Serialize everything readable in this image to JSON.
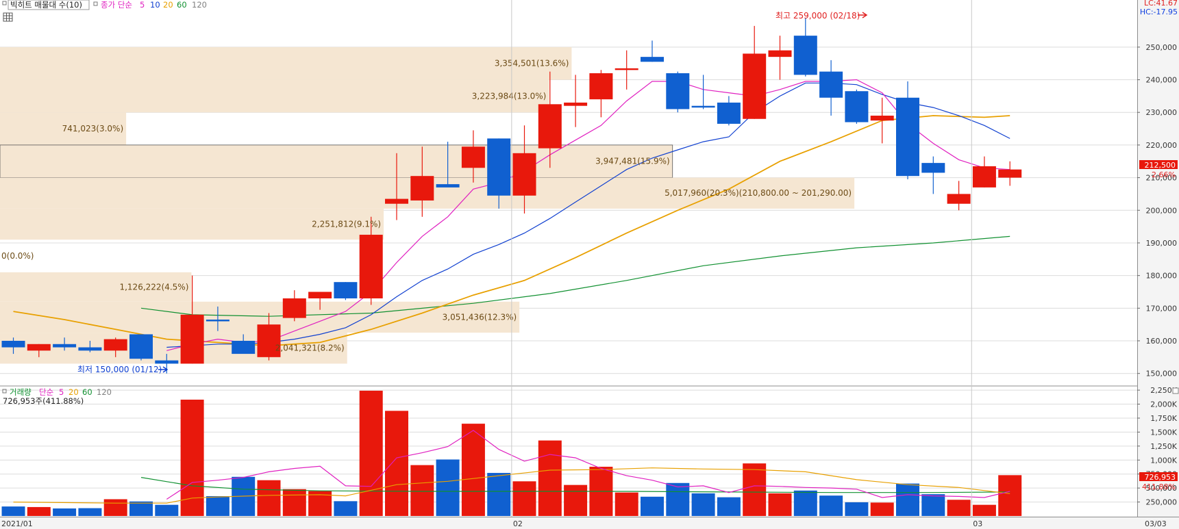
{
  "legend_top": {
    "title": "빅히트 매물대 수(10)",
    "ma_label": "종가 단순",
    "ma_periods": [
      "5",
      "10",
      "20",
      "60",
      "120"
    ],
    "ma_colors": [
      "#e020c0",
      "#1040d0",
      "#e8a000",
      "#109030",
      "#808080"
    ]
  },
  "legend_bottom": {
    "title": "거래량",
    "ma_label": "단순",
    "ma_periods": [
      "5",
      "20",
      "60",
      "120"
    ],
    "ma_colors": [
      "#e020c0",
      "#e8a000",
      "#109030",
      "#808080"
    ],
    "current": "726,953주(411.88%)"
  },
  "corner_labels": {
    "lc": "LC:41.67",
    "hc": "HC:-17.95"
  },
  "colors": {
    "up": "#e8180c",
    "down": "#1060d0",
    "zone": "#f5e6d2",
    "grid": "#dcdcdc"
  },
  "chart_data": [
    {
      "type": "candlestick",
      "x_axis": [
        "2021/01",
        "02",
        "03"
      ],
      "y_ticks": [
        "250,000",
        "240,000",
        "230,000",
        "220,000",
        "210,000",
        "200,000",
        "190,000",
        "180,000",
        "170,000",
        "160,000",
        "150,000"
      ],
      "ylim": [
        147000,
        261500
      ],
      "candles": [
        {
          "o": 160000,
          "h": 161000,
          "l": 156000,
          "c": 158000
        },
        {
          "o": 157000,
          "h": 159000,
          "l": 155000,
          "c": 159000
        },
        {
          "o": 159000,
          "h": 161000,
          "l": 157000,
          "c": 158000
        },
        {
          "o": 158000,
          "h": 160000,
          "l": 156500,
          "c": 157000
        },
        {
          "o": 157000,
          "h": 161000,
          "l": 155000,
          "c": 160500
        },
        {
          "o": 162000,
          "h": 162000,
          "l": 154000,
          "c": 154500
        },
        {
          "o": 154000,
          "h": 156000,
          "l": 150000,
          "c": 153000
        },
        {
          "o": 153000,
          "h": 180000,
          "l": 153000,
          "c": 168000
        },
        {
          "o": 166500,
          "h": 170500,
          "l": 163000,
          "c": 166000
        },
        {
          "o": 160000,
          "h": 162000,
          "l": 157000,
          "c": 156000
        },
        {
          "o": 155000,
          "h": 168500,
          "l": 154000,
          "c": 165000
        },
        {
          "o": 167000,
          "h": 175500,
          "l": 166000,
          "c": 173000
        },
        {
          "o": 173000,
          "h": 175000,
          "l": 169500,
          "c": 175000
        },
        {
          "o": 178000,
          "h": 178000,
          "l": 172500,
          "c": 173000
        },
        {
          "o": 173000,
          "h": 198000,
          "l": 171000,
          "c": 192500
        },
        {
          "o": 202000,
          "h": 217500,
          "l": 197000,
          "c": 203500
        },
        {
          "o": 203000,
          "h": 219500,
          "l": 198000,
          "c": 210500
        },
        {
          "o": 208000,
          "h": 221000,
          "l": 207500,
          "c": 207000
        },
        {
          "o": 213000,
          "h": 224500,
          "l": 208500,
          "c": 219500
        },
        {
          "o": 222000,
          "h": 222000,
          "l": 200500,
          "c": 204500
        },
        {
          "o": 204500,
          "h": 226000,
          "l": 199000,
          "c": 217500
        },
        {
          "o": 219000,
          "h": 242500,
          "l": 213000,
          "c": 232500
        },
        {
          "o": 232000,
          "h": 241500,
          "l": 225500,
          "c": 233000
        },
        {
          "o": 234000,
          "h": 243000,
          "l": 228500,
          "c": 242000
        },
        {
          "o": 243000,
          "h": 249000,
          "l": 237000,
          "c": 243500
        },
        {
          "o": 247000,
          "h": 252000,
          "l": 245500,
          "c": 245500
        },
        {
          "o": 242000,
          "h": 242500,
          "l": 230000,
          "c": 231000
        },
        {
          "o": 232000,
          "h": 241500,
          "l": 231000,
          "c": 231500
        },
        {
          "o": 233000,
          "h": 235000,
          "l": 226000,
          "c": 226500
        },
        {
          "o": 228000,
          "h": 256500,
          "l": 228000,
          "c": 248000
        },
        {
          "o": 247000,
          "h": 253500,
          "l": 240000,
          "c": 249000
        },
        {
          "o": 253500,
          "h": 259000,
          "l": 241000,
          "c": 241500
        },
        {
          "o": 242500,
          "h": 246000,
          "l": 229000,
          "c": 234500
        },
        {
          "o": 236500,
          "h": 237000,
          "l": 226500,
          "c": 227000
        },
        {
          "o": 227500,
          "h": 234500,
          "l": 220500,
          "c": 229000
        },
        {
          "o": 234500,
          "h": 239500,
          "l": 209500,
          "c": 210500
        },
        {
          "o": 214500,
          "h": 216500,
          "l": 205000,
          "c": 211500
        },
        {
          "o": 202000,
          "h": 209000,
          "l": 200000,
          "c": 205000
        },
        {
          "o": 207000,
          "h": 216500,
          "l": 207000,
          "c": 213500
        },
        {
          "o": 210000,
          "h": 215000,
          "l": 207500,
          "c": 212500
        }
      ],
      "ma5": [
        {
          "i": 6,
          "v": 157000
        },
        {
          "i": 7,
          "v": 159000
        },
        {
          "i": 8,
          "v": 160500
        },
        {
          "i": 9,
          "v": 159500
        },
        {
          "i": 10,
          "v": 160000
        },
        {
          "i": 11,
          "v": 163000
        },
        {
          "i": 12,
          "v": 166000
        },
        {
          "i": 13,
          "v": 169000
        },
        {
          "i": 14,
          "v": 175000
        },
        {
          "i": 15,
          "v": 184000
        },
        {
          "i": 16,
          "v": 192000
        },
        {
          "i": 17,
          "v": 198000
        },
        {
          "i": 18,
          "v": 206500
        },
        {
          "i": 19,
          "v": 208500
        },
        {
          "i": 20,
          "v": 212000
        },
        {
          "i": 21,
          "v": 217000
        },
        {
          "i": 22,
          "v": 221500
        },
        {
          "i": 23,
          "v": 226000
        },
        {
          "i": 24,
          "v": 233500
        },
        {
          "i": 25,
          "v": 239500
        },
        {
          "i": 26,
          "v": 239500
        },
        {
          "i": 27,
          "v": 237000
        },
        {
          "i": 28,
          "v": 236000
        },
        {
          "i": 29,
          "v": 235000
        },
        {
          "i": 30,
          "v": 237000
        },
        {
          "i": 31,
          "v": 239500
        },
        {
          "i": 32,
          "v": 239500
        },
        {
          "i": 33,
          "v": 240000
        },
        {
          "i": 34,
          "v": 236000
        },
        {
          "i": 35,
          "v": 226500
        },
        {
          "i": 36,
          "v": 220500
        },
        {
          "i": 37,
          "v": 215500
        },
        {
          "i": 38,
          "v": 213000
        },
        {
          "i": 39,
          "v": 212500
        }
      ],
      "ma10": [
        {
          "i": 6,
          "v": 158000
        },
        {
          "i": 7,
          "v": 158500
        },
        {
          "i": 8,
          "v": 159000
        },
        {
          "i": 9,
          "v": 159000
        },
        {
          "i": 10,
          "v": 159500
        },
        {
          "i": 11,
          "v": 160500
        },
        {
          "i": 12,
          "v": 162000
        },
        {
          "i": 13,
          "v": 164000
        },
        {
          "i": 14,
          "v": 168000
        },
        {
          "i": 15,
          "v": 173500
        },
        {
          "i": 16,
          "v": 178500
        },
        {
          "i": 17,
          "v": 182000
        },
        {
          "i": 18,
          "v": 186500
        },
        {
          "i": 19,
          "v": 189500
        },
        {
          "i": 20,
          "v": 193000
        },
        {
          "i": 21,
          "v": 197500
        },
        {
          "i": 22,
          "v": 202500
        },
        {
          "i": 23,
          "v": 207500
        },
        {
          "i": 24,
          "v": 212500
        },
        {
          "i": 25,
          "v": 216000
        },
        {
          "i": 26,
          "v": 218500
        },
        {
          "i": 27,
          "v": 221000
        },
        {
          "i": 28,
          "v": 222500
        },
        {
          "i": 29,
          "v": 230000
        },
        {
          "i": 30,
          "v": 235000
        },
        {
          "i": 31,
          "v": 239000
        },
        {
          "i": 32,
          "v": 239000
        },
        {
          "i": 33,
          "v": 238500
        },
        {
          "i": 34,
          "v": 235500
        },
        {
          "i": 35,
          "v": 233000
        },
        {
          "i": 36,
          "v": 231500
        },
        {
          "i": 37,
          "v": 229000
        },
        {
          "i": 38,
          "v": 226000
        },
        {
          "i": 39,
          "v": 222000
        }
      ],
      "ma20": [
        {
          "i": 0,
          "v": 169000
        },
        {
          "i": 2,
          "v": 166500
        },
        {
          "i": 4,
          "v": 163500
        },
        {
          "i": 6,
          "v": 160500
        },
        {
          "i": 8,
          "v": 159500
        },
        {
          "i": 10,
          "v": 158500
        },
        {
          "i": 12,
          "v": 159500
        },
        {
          "i": 14,
          "v": 163500
        },
        {
          "i": 16,
          "v": 168500
        },
        {
          "i": 18,
          "v": 174000
        },
        {
          "i": 20,
          "v": 178500
        },
        {
          "i": 22,
          "v": 185500
        },
        {
          "i": 24,
          "v": 193000
        },
        {
          "i": 26,
          "v": 200000
        },
        {
          "i": 28,
          "v": 206500
        },
        {
          "i": 30,
          "v": 215000
        },
        {
          "i": 32,
          "v": 221000
        },
        {
          "i": 34,
          "v": 227500
        },
        {
          "i": 36,
          "v": 229000
        },
        {
          "i": 38,
          "v": 228500
        },
        {
          "i": 39,
          "v": 229000
        }
      ],
      "ma60": [
        {
          "i": 5,
          "v": 170000
        },
        {
          "i": 7,
          "v": 168000
        },
        {
          "i": 10,
          "v": 167500
        },
        {
          "i": 14,
          "v": 168500
        },
        {
          "i": 18,
          "v": 171500
        },
        {
          "i": 21,
          "v": 174500
        },
        {
          "i": 24,
          "v": 178500
        },
        {
          "i": 27,
          "v": 183000
        },
        {
          "i": 30,
          "v": 186000
        },
        {
          "i": 33,
          "v": 188500
        },
        {
          "i": 36,
          "v": 190000
        },
        {
          "i": 39,
          "v": 192000
        }
      ],
      "volume_profile": [
        {
          "label": "3,354,501(13.6%)",
          "lo": 240000,
          "hi": 250000,
          "frac": 0.657
        },
        {
          "label": "3,223,984(13.0%)",
          "lo": 230000,
          "hi": 240000,
          "frac": 0.631
        },
        {
          "label": "741,023(3.0%)",
          "lo": 220000,
          "hi": 230000,
          "frac": 0.145
        },
        {
          "label": "3,947,481(15.9%)",
          "lo": 210000,
          "hi": 220000,
          "frac": 0.773,
          "boxed": true
        },
        {
          "label": "5,017,960(20.3%)(210,800.00 ~ 201,290.00)",
          "lo": 200500,
          "hi": 210000,
          "frac": 0.982
        },
        {
          "label": "2,251,812(9.1%)",
          "lo": 191000,
          "hi": 200500,
          "frac": 0.441
        },
        {
          "label": "0(0.0%)",
          "lo": 181000,
          "hi": 191000,
          "frac": 0
        },
        {
          "label": "1,126,222(4.5%)",
          "lo": 172000,
          "hi": 181000,
          "frac": 0.22
        },
        {
          "label": "3,051,436(12.3%)",
          "lo": 162500,
          "hi": 172000,
          "frac": 0.597
        },
        {
          "label": "2,041,321(8.2%)",
          "lo": 153000,
          "hi": 162500,
          "frac": 0.399
        }
      ],
      "annotations": {
        "high": "최고 259,000 (02/18)",
        "low": "최저 150,000 (01/12)"
      },
      "last_price": {
        "price": "212,500",
        "change": "2.66%"
      }
    },
    {
      "type": "bar",
      "name": "거래량",
      "y_ticks": [
        "2,250K",
        "2,000K",
        "1,750K",
        "1,500K",
        "1,250K",
        "1,000K",
        "750,000",
        "500,000",
        "250,000"
      ],
      "ylim": [
        0,
        2300000
      ],
      "values": [
        170000,
        160000,
        135000,
        140000,
        300000,
        260000,
        200000,
        2080000,
        355000,
        700000,
        640000,
        480000,
        445000,
        265000,
        2240000,
        1880000,
        910000,
        1010000,
        1650000,
        770000,
        620000,
        1350000,
        555000,
        880000,
        420000,
        345000,
        590000,
        405000,
        335000,
        940000,
        405000,
        455000,
        365000,
        245000,
        240000,
        580000,
        390000,
        290000,
        200000,
        730000
      ],
      "ma5": [
        {
          "i": 6,
          "v": 300000
        },
        {
          "i": 7,
          "v": 600000
        },
        {
          "i": 8,
          "v": 640000
        },
        {
          "i": 9,
          "v": 690000
        },
        {
          "i": 10,
          "v": 790000
        },
        {
          "i": 11,
          "v": 850000
        },
        {
          "i": 12,
          "v": 890000
        },
        {
          "i": 13,
          "v": 540000
        },
        {
          "i": 14,
          "v": 530000
        },
        {
          "i": 15,
          "v": 1040000
        },
        {
          "i": 16,
          "v": 1130000
        },
        {
          "i": 17,
          "v": 1240000
        },
        {
          "i": 18,
          "v": 1530000
        },
        {
          "i": 19,
          "v": 1190000
        },
        {
          "i": 20,
          "v": 980000
        },
        {
          "i": 21,
          "v": 1100000
        },
        {
          "i": 22,
          "v": 1040000
        },
        {
          "i": 23,
          "v": 850000
        },
        {
          "i": 24,
          "v": 720000
        },
        {
          "i": 25,
          "v": 640000
        },
        {
          "i": 26,
          "v": 520000
        },
        {
          "i": 27,
          "v": 540000
        },
        {
          "i": 28,
          "v": 420000
        },
        {
          "i": 29,
          "v": 540000
        },
        {
          "i": 30,
          "v": 530000
        },
        {
          "i": 31,
          "v": 510000
        },
        {
          "i": 32,
          "v": 500000
        },
        {
          "i": 33,
          "v": 480000
        },
        {
          "i": 34,
          "v": 330000
        },
        {
          "i": 35,
          "v": 380000
        },
        {
          "i": 36,
          "v": 360000
        },
        {
          "i": 37,
          "v": 350000
        },
        {
          "i": 38,
          "v": 330000
        },
        {
          "i": 39,
          "v": 440000
        }
      ],
      "ma20": [
        {
          "i": 0,
          "v": 250000
        },
        {
          "i": 4,
          "v": 230000
        },
        {
          "i": 6,
          "v": 230000
        },
        {
          "i": 7,
          "v": 320000
        },
        {
          "i": 8,
          "v": 340000
        },
        {
          "i": 10,
          "v": 370000
        },
        {
          "i": 12,
          "v": 380000
        },
        {
          "i": 13,
          "v": 360000
        },
        {
          "i": 14,
          "v": 460000
        },
        {
          "i": 15,
          "v": 560000
        },
        {
          "i": 17,
          "v": 620000
        },
        {
          "i": 19,
          "v": 720000
        },
        {
          "i": 21,
          "v": 820000
        },
        {
          "i": 23,
          "v": 830000
        },
        {
          "i": 25,
          "v": 860000
        },
        {
          "i": 27,
          "v": 840000
        },
        {
          "i": 29,
          "v": 830000
        },
        {
          "i": 31,
          "v": 790000
        },
        {
          "i": 33,
          "v": 650000
        },
        {
          "i": 35,
          "v": 560000
        },
        {
          "i": 37,
          "v": 510000
        },
        {
          "i": 39,
          "v": 400000
        }
      ],
      "ma60": [
        {
          "i": 5,
          "v": 690000
        },
        {
          "i": 7,
          "v": 540000
        },
        {
          "i": 9,
          "v": 480000
        },
        {
          "i": 12,
          "v": 450000
        },
        {
          "i": 16,
          "v": 440000
        },
        {
          "i": 20,
          "v": 440000
        },
        {
          "i": 24,
          "v": 440000
        },
        {
          "i": 28,
          "v": 430000
        },
        {
          "i": 32,
          "v": 420000
        },
        {
          "i": 36,
          "v": 420000
        },
        {
          "i": 39,
          "v": 430000
        }
      ],
      "last_value": {
        "value": "726,953",
        "ratio": "411.88%"
      }
    }
  ],
  "date_label_right": "03/03"
}
